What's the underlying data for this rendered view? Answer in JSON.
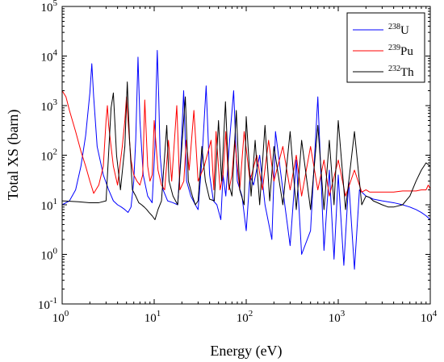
{
  "chart_data": {
    "type": "line",
    "xlabel": "Energy (eV)",
    "ylabel": "Total XS (barn)",
    "xscale": "log",
    "yscale": "log",
    "xlim": [
      1,
      10000
    ],
    "ylim": [
      0.1,
      100000
    ],
    "grid": false,
    "legend_position": "top-right",
    "x_ticks": [
      {
        "base": "10",
        "exp": "0",
        "value": 1
      },
      {
        "base": "10",
        "exp": "1",
        "value": 10
      },
      {
        "base": "10",
        "exp": "2",
        "value": 100
      },
      {
        "base": "10",
        "exp": "3",
        "value": 1000
      },
      {
        "base": "10",
        "exp": "4",
        "value": 10000
      }
    ],
    "y_ticks": [
      {
        "base": "10",
        "exp": "-1",
        "value": 0.1
      },
      {
        "base": "10",
        "exp": "0",
        "value": 1
      },
      {
        "base": "10",
        "exp": "1",
        "value": 10
      },
      {
        "base": "10",
        "exp": "2",
        "value": 100
      },
      {
        "base": "10",
        "exp": "3",
        "value": 1000
      },
      {
        "base": "10",
        "exp": "4",
        "value": 10000
      },
      {
        "base": "10",
        "exp": "5",
        "value": 100000
      }
    ],
    "series": [
      {
        "name": "U",
        "mass_number": "238",
        "color": "#0000ff",
        "x": [
          1,
          1.2,
          1.4,
          1.6,
          1.8,
          2.0,
          2.1,
          2.2,
          2.4,
          2.8,
          3.2,
          3.6,
          4.0,
          4.4,
          4.8,
          5.2,
          5.6,
          6.0,
          6.3,
          6.67,
          7.0,
          7.6,
          8.5,
          9.5,
          10.2,
          10.5,
          10.8,
          11.2,
          11.6,
          12.5,
          14,
          16,
          18,
          19.5,
          20.9,
          22.5,
          25,
          28,
          30,
          33,
          36.7,
          40,
          44,
          48,
          53,
          56,
          60,
          66,
          73,
          80,
          90,
          100,
          110,
          120,
          140,
          160,
          190,
          208,
          250,
          300,
          350,
          400,
          500,
          600,
          700,
          800,
          900,
          1000,
          1150,
          1300,
          1500,
          1700,
          2000,
          2200,
          2400,
          3000,
          4000,
          5000,
          6000,
          7000,
          8000,
          9000,
          10000
        ],
        "y": [
          10,
          12,
          20,
          60,
          250,
          1800,
          7000,
          1500,
          150,
          40,
          20,
          12,
          10,
          9,
          8,
          7,
          9,
          30,
          200,
          9500,
          500,
          40,
          15,
          11,
          150,
          2000,
          13000,
          1500,
          100,
          20,
          12,
          11,
          10,
          100,
          2000,
          30,
          15,
          10,
          8,
          80,
          2500,
          40,
          12,
          10,
          5,
          40,
          15,
          200,
          2000,
          30,
          15,
          3,
          40,
          25,
          100,
          10,
          2,
          300,
          20,
          1.5,
          80,
          1.0,
          3,
          1500,
          1.2,
          50,
          0.8,
          40,
          0.6,
          30,
          0.5,
          20,
          15,
          14,
          13,
          12,
          11,
          10,
          9,
          8,
          7,
          6,
          5
        ]
      },
      {
        "name": "Pu",
        "mass_number": "239",
        "color": "#ff0000",
        "x": [
          1,
          1.1,
          1.2,
          1.4,
          1.6,
          1.8,
          2.0,
          2.2,
          2.5,
          2.8,
          3.0,
          3.1,
          3.2,
          3.4,
          3.6,
          4.0,
          4.5,
          4.8,
          5.0,
          5.3,
          5.6,
          6.0,
          6.5,
          7.0,
          7.5,
          7.9,
          8.5,
          9.0,
          9.5,
          10.0,
          11,
          12,
          13,
          14.3,
          15.5,
          17.6,
          19,
          21,
          22.3,
          24,
          27,
          30,
          35,
          41.5,
          44.5,
          47,
          52,
          56,
          60,
          65,
          70,
          75,
          85,
          95,
          110,
          130,
          150,
          175,
          200,
          250,
          300,
          350,
          400,
          500,
          600,
          700,
          800,
          1000,
          1200,
          1500,
          1800,
          2000,
          2200,
          2500,
          3000,
          4000,
          5000,
          6000,
          7000,
          8000,
          9000,
          9500,
          10000
        ],
        "y": [
          2000,
          1500,
          800,
          300,
          120,
          60,
          30,
          17,
          25,
          60,
          500,
          1000,
          400,
          150,
          60,
          25,
          150,
          500,
          1500,
          300,
          80,
          40,
          30,
          25,
          40,
          1300,
          60,
          30,
          40,
          500,
          50,
          25,
          20,
          200,
          30,
          1000,
          20,
          30,
          200,
          50,
          800,
          30,
          60,
          200,
          20,
          300,
          20,
          40,
          300,
          20,
          40,
          200,
          20,
          300,
          30,
          100,
          20,
          200,
          30,
          150,
          20,
          100,
          15,
          150,
          20,
          80,
          15,
          80,
          15,
          50,
          18,
          20,
          18,
          18,
          18,
          18,
          19,
          19,
          19,
          20,
          20,
          25,
          21
        ]
      },
      {
        "name": "Th",
        "mass_number": "232",
        "color": "#000000",
        "x": [
          1,
          1.5,
          2,
          2.5,
          3.0,
          3.4,
          3.6,
          3.9,
          4.3,
          4.8,
          5.1,
          5.4,
          5.8,
          6.3,
          6.8,
          7.3,
          7.8,
          8.3,
          8.8,
          9.5,
          10.2,
          11,
          12,
          13,
          13.7,
          14.5,
          16,
          18,
          21.8,
          23.5,
          26,
          28,
          30,
          33,
          36,
          40,
          45,
          50,
          54,
          59.5,
          65,
          70,
          78,
          85,
          95,
          100,
          113,
          125,
          140,
          160,
          180,
          200,
          250,
          300,
          350,
          400,
          500,
          600,
          700,
          800,
          900,
          1000,
          1200,
          1500,
          1800,
          2000,
          2200,
          2400,
          3000,
          3500,
          4000,
          5000,
          6000,
          7000,
          8000,
          9000,
          10000
        ],
        "y": [
          12,
          11.5,
          11,
          11,
          12,
          900,
          1800,
          100,
          20,
          150,
          3000,
          200,
          20,
          15,
          11,
          10,
          9,
          8,
          7,
          6,
          5,
          8,
          12,
          100,
          400,
          30,
          15,
          10,
          1500,
          30,
          15,
          10,
          12,
          150,
          30,
          13,
          12,
          500,
          30,
          1200,
          25,
          15,
          800,
          20,
          10,
          600,
          15,
          200,
          10,
          400,
          12,
          150,
          10,
          300,
          8,
          200,
          8,
          400,
          8,
          200,
          10,
          500,
          8,
          300,
          10,
          15,
          14,
          12,
          10,
          9,
          9,
          10,
          15,
          30,
          50,
          70,
          60
        ]
      }
    ]
  }
}
